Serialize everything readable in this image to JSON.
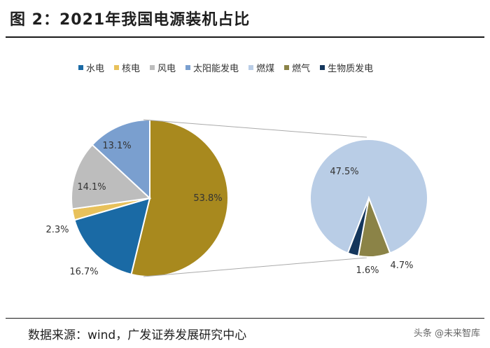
{
  "header": {
    "title": "图 2：2021年我国电源装机占比"
  },
  "footer": {
    "source": "数据来源：wind，广发证券发展研究中心",
    "watermark": "头条 @未来智库"
  },
  "chart_data": {
    "type": "pie",
    "title": "",
    "legend": [
      {
        "name": "水电",
        "color": "#1a6aa5"
      },
      {
        "name": "核电",
        "color": "#e8c15b"
      },
      {
        "name": "风电",
        "color": "#bdbdbd"
      },
      {
        "name": "太阳能发电",
        "color": "#7a9fcf"
      },
      {
        "name": "燃煤",
        "color": "#b9cde6"
      },
      {
        "name": "燃气",
        "color": "#8b8347"
      },
      {
        "name": "生物质发电",
        "color": "#14365c"
      }
    ],
    "main_pie": [
      {
        "name": "",
        "value": 53.8,
        "label": "53.8%",
        "color": "#a8891e"
      },
      {
        "name": "水电",
        "value": 16.7,
        "label": "16.7%",
        "color": "#1a6aa5"
      },
      {
        "name": "核电",
        "value": 2.3,
        "label": "2.3%",
        "color": "#e8c15b"
      },
      {
        "name": "风电",
        "value": 14.1,
        "label": "14.1%",
        "color": "#bdbdbd"
      },
      {
        "name": "太阳能发电",
        "value": 13.1,
        "label": "13.1%",
        "color": "#7a9fcf"
      }
    ],
    "sub_pie": [
      {
        "name": "燃煤",
        "value": 47.5,
        "label": "47.5%",
        "color": "#b9cde6"
      },
      {
        "name": "燃气",
        "value": 4.7,
        "label": "4.7%",
        "color": "#8b8347"
      },
      {
        "name": "生物质发电",
        "value": 1.6,
        "label": "1.6%",
        "color": "#14365c"
      }
    ]
  }
}
